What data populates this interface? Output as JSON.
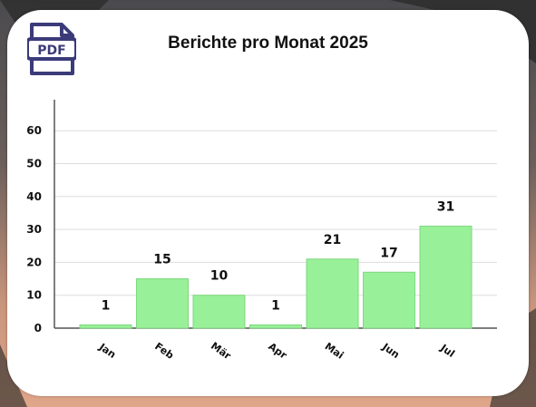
{
  "title": "Berichte pro Monat 2025",
  "icon": {
    "name": "pdf-icon",
    "text": "PDF",
    "color": "#3b3b7a"
  },
  "colors": {
    "bar": "#98f098",
    "bar_stroke": "#7fd87f",
    "grid": "#dddddd",
    "axis": "#555555"
  },
  "chart_data": {
    "type": "bar",
    "title": "Berichte pro Monat 2025",
    "categories": [
      "Jan",
      "Feb",
      "Mär",
      "Apr",
      "Mai",
      "Jun",
      "Jul"
    ],
    "values": [
      1,
      15,
      10,
      1,
      21,
      17,
      31
    ],
    "ylim": [
      0,
      65
    ],
    "yticks": [
      0,
      10,
      20,
      30,
      40,
      50,
      60
    ],
    "grid": true,
    "xlabel": "",
    "ylabel": ""
  }
}
